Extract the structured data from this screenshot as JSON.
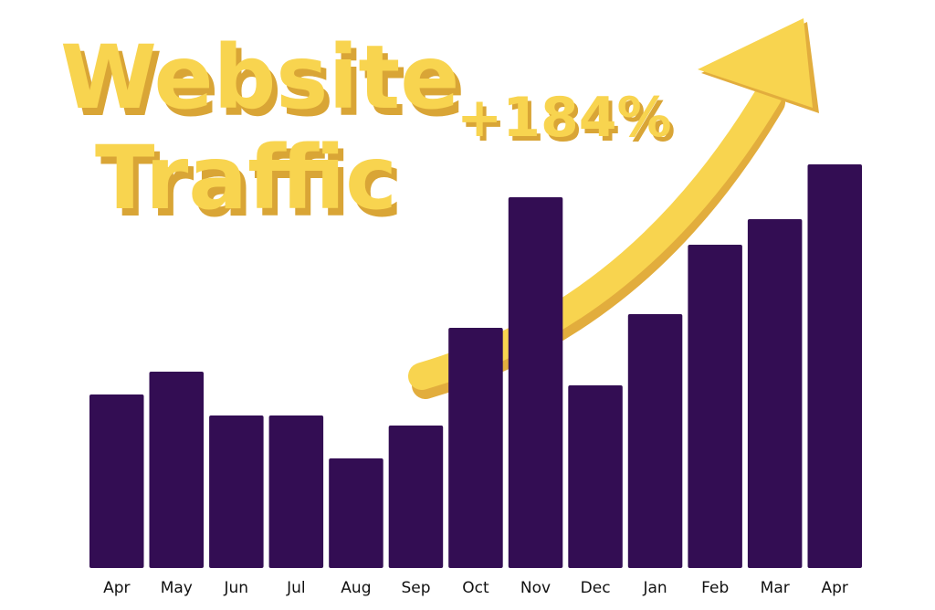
{
  "header": {
    "title_line1": "Website",
    "title_line2": "Traffic",
    "growth_label": "+184%"
  },
  "colors": {
    "bar": "#330d53",
    "accent": "#f8d44f",
    "accent_shadow": "#e2ad3d",
    "text": "#111111"
  },
  "chart_data": {
    "type": "bar",
    "title": "Website Traffic",
    "annotation": "+184%",
    "xlabel": "",
    "ylabel": "",
    "categories": [
      "Apr",
      "May",
      "Jun",
      "Jul",
      "Aug",
      "Sep",
      "Oct",
      "Nov",
      "Dec",
      "Jan",
      "Feb",
      "Mar",
      "Apr"
    ],
    "values": [
      190,
      215,
      167,
      167,
      120,
      156,
      263,
      406,
      200,
      278,
      354,
      382,
      442
    ],
    "ylim": [
      0,
      450
    ],
    "grid": false,
    "legend": "none"
  }
}
